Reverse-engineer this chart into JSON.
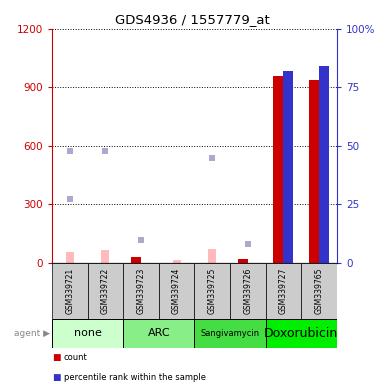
{
  "title": "GDS4936 / 1557779_at",
  "samples": [
    "GSM339721",
    "GSM339722",
    "GSM339723",
    "GSM339724",
    "GSM339725",
    "GSM339726",
    "GSM339727",
    "GSM339765"
  ],
  "agents": [
    {
      "label": "none",
      "samples": [
        0,
        1
      ],
      "color": "#ccffcc"
    },
    {
      "label": "ARC",
      "samples": [
        2,
        3
      ],
      "color": "#88ee88"
    },
    {
      "label": "Sangivamycin",
      "samples": [
        4,
        5
      ],
      "color": "#44dd44"
    },
    {
      "label": "Doxorubicin",
      "samples": [
        6,
        7
      ],
      "color": "#00ee00"
    }
  ],
  "ylim_left": [
    0,
    1200
  ],
  "ylim_right": [
    0,
    100
  ],
  "yticks_left": [
    0,
    300,
    600,
    900,
    1200
  ],
  "yticks_right": [
    0,
    25,
    50,
    75,
    100
  ],
  "yticklabels_right": [
    "0",
    "25",
    "50",
    "75",
    "100%"
  ],
  "count_vals": [
    0,
    0,
    30,
    0,
    0,
    20,
    960,
    940
  ],
  "pct_vals": [
    0,
    0,
    0,
    0,
    0,
    0,
    82,
    84
  ],
  "absent_value": [
    55,
    65,
    0,
    15,
    70,
    0,
    0,
    0
  ],
  "absent_rank": [
    575,
    575,
    120,
    0,
    540,
    100,
    0,
    0
  ],
  "absent_rank2": [
    330,
    0,
    0,
    0,
    0,
    0,
    0,
    0
  ],
  "bar_width": 0.28,
  "count_color": "#cc0000",
  "percentile_color": "#3333cc",
  "absent_value_color": "#ffbbbb",
  "absent_rank_color": "#aaaacc",
  "sample_row_color": "#cccccc",
  "left_axis_color": "#cc0000",
  "right_axis_color": "#3333cc",
  "agent_font_sizes": [
    8,
    8,
    6,
    9
  ]
}
